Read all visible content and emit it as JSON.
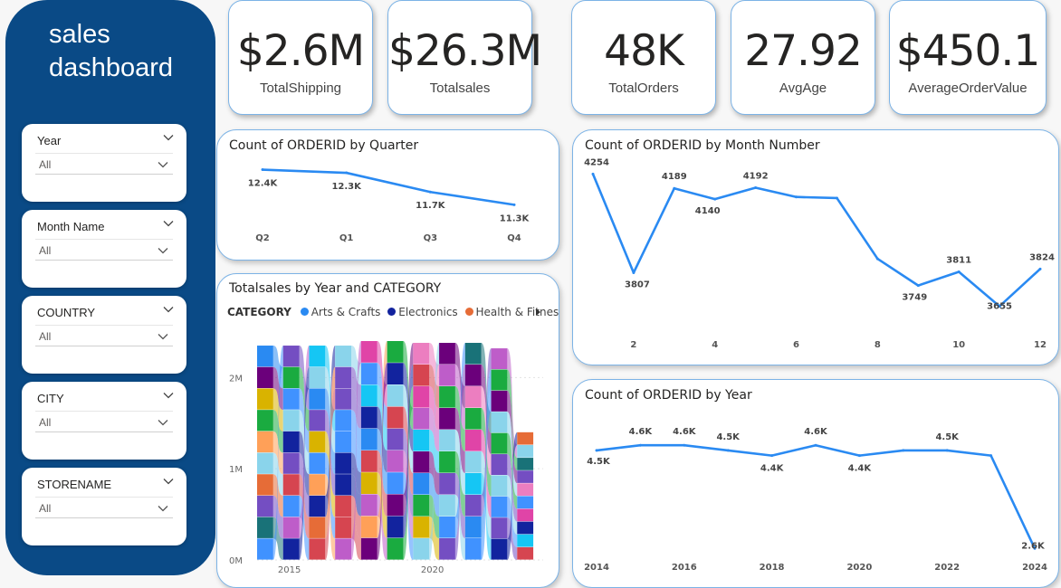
{
  "app": {
    "title": "sales dashboard"
  },
  "slicers": [
    {
      "label": "Year",
      "value": "All"
    },
    {
      "label": "Month Name",
      "value": "All"
    },
    {
      "label": "COUNTRY",
      "value": "All"
    },
    {
      "label": "CITY",
      "value": "All"
    },
    {
      "label": "STORENAME",
      "value": "All"
    }
  ],
  "kpis": [
    {
      "value": "$2.6M",
      "label": "TotalShipping"
    },
    {
      "value": "$26.3M",
      "label": "Totalsales"
    },
    {
      "value": "48K",
      "label": "TotalOrders"
    },
    {
      "value": "27.92",
      "label": "AvgAge"
    },
    {
      "value": "$450.1",
      "label": "AverageOrderValue"
    }
  ],
  "colors": {
    "sidebar": "#0a4a86",
    "line": "#2a8af2",
    "card_border": "#7cb3e6"
  },
  "chart_data": [
    {
      "id": "quarter",
      "type": "line",
      "title": "Count of ORDERID by Quarter",
      "categories": [
        "Q2",
        "Q1",
        "Q3",
        "Q4"
      ],
      "values": [
        12400,
        12300,
        11700,
        11300
      ],
      "labels": [
        "12.4K",
        "12.3K",
        "11.7K",
        "11.3K"
      ],
      "ylim": [
        10800,
        12500
      ]
    },
    {
      "id": "month",
      "type": "line",
      "title": "Count of ORDERID by Month Number",
      "x": [
        1,
        2,
        3,
        4,
        5,
        6,
        7,
        8,
        9,
        10,
        11,
        12
      ],
      "values": [
        4254,
        3807,
        4189,
        4140,
        4192,
        4150,
        4145,
        3870,
        3749,
        3811,
        3655,
        3824
      ],
      "labels": [
        "4254",
        "3807",
        "4189",
        "4140",
        "4192",
        "",
        "",
        "",
        "3749",
        "3811",
        "3655",
        "3824"
      ],
      "xticks": [
        "2",
        "4",
        "6",
        "8",
        "10",
        "12"
      ],
      "xtick_values": [
        2,
        4,
        6,
        8,
        10,
        12
      ],
      "ylim": [
        3600,
        4280
      ]
    },
    {
      "id": "year",
      "type": "line",
      "title": "Count of ORDERID by Year",
      "x": [
        2014,
        2015,
        2016,
        2017,
        2018,
        2019,
        2020,
        2021,
        2022,
        2023,
        2024
      ],
      "values": [
        4500,
        4600,
        4600,
        4500,
        4400,
        4600,
        4400,
        4500,
        4500,
        4400,
        2600
      ],
      "labels": [
        "4.5K",
        "4.6K",
        "4.6K",
        "4.5K",
        "4.4K",
        "4.6K",
        "4.4K",
        "",
        "4.5K",
        "",
        "2.6K"
      ],
      "xticks": [
        "2014",
        "2016",
        "2018",
        "2020",
        "2022",
        "2024"
      ],
      "xtick_values": [
        2014,
        2016,
        2018,
        2020,
        2022,
        2024
      ],
      "ylim": [
        2500,
        5200
      ]
    },
    {
      "id": "ribbon",
      "type": "area",
      "title": "Totalsales by Year and CATEGORY",
      "legend_title": "CATEGORY",
      "legend": [
        {
          "name": "Arts & Crafts",
          "color": "#2a8af2"
        },
        {
          "name": "Electronics",
          "color": "#12239e"
        },
        {
          "name": "Health & Fitness",
          "color": "#e66c37"
        }
      ],
      "yticks": [
        "0M",
        "1M",
        "2M"
      ],
      "ytick_values": [
        0,
        1000000,
        2000000
      ],
      "xticks": [
        "2015",
        "2020"
      ],
      "xtick_values": [
        2015,
        2020
      ],
      "ylim": [
        0,
        2400000
      ],
      "x": [
        2014,
        2015,
        2016,
        2017,
        2018,
        2019,
        2020,
        2021,
        2022,
        2023,
        2024
      ],
      "totals": [
        2350000,
        2350000,
        2350000,
        2350000,
        2400000,
        2400000,
        2380000,
        2380000,
        2380000,
        2320000,
        1400000
      ],
      "palette": [
        "#2a8af2",
        "#12239e",
        "#e66c37",
        "#6b007b",
        "#e044a7",
        "#744ec2",
        "#d9b300",
        "#d64550",
        "#197278",
        "#1aab40",
        "#15c6f4",
        "#4092ff",
        "#ffa058",
        "#be5dc9",
        "#ec7ec0",
        "#8ad4eb"
      ]
    }
  ]
}
